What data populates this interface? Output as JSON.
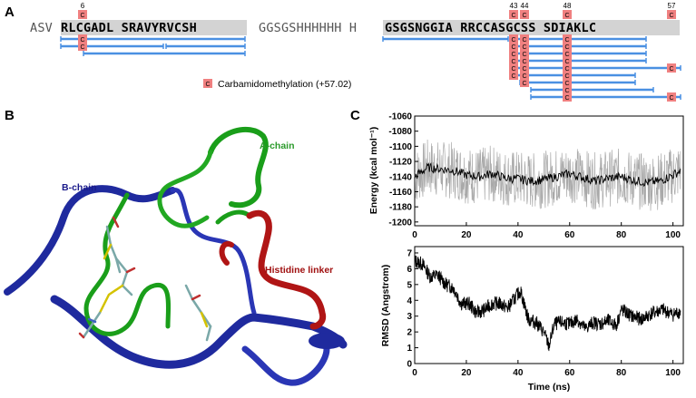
{
  "panel_a": {
    "label": "A",
    "seq_groups": [
      {
        "text": "ASV",
        "bold": false,
        "shaded": false
      },
      {
        "text": "RLCGADL SRAVYRVCSH",
        "bold": true,
        "shaded": true
      },
      {
        "text": "GGSGSHHHHHH H",
        "bold": false,
        "shaded": false
      },
      {
        "text": "GSGSNGGIA RRCCASGCSS SDIAKLC",
        "bold": true,
        "shaded": true
      }
    ],
    "cys_positions": [
      "6",
      "43",
      "44",
      "48",
      "57"
    ],
    "modification_symbol": "C",
    "legend_text": "Carbamidomethylation (+57.02)",
    "colors": {
      "peptide_bar": "#4a90e2",
      "mod_box": "#f08080",
      "shade": "#d3d3d3"
    }
  },
  "panel_b": {
    "label": "B",
    "labels": {
      "a_chain": "A-chain",
      "b_chain": "B-chain",
      "linker": "Histidine linker"
    },
    "colors": {
      "a_chain": "#1a9e1a",
      "b_chain": "#1f2a9e",
      "linker": "#b01515",
      "label_a": "#2a9a2a",
      "label_b": "#1a1a8a",
      "label_linker": "#a01010"
    }
  },
  "panel_c": {
    "label": "C",
    "chart_data": [
      {
        "type": "line",
        "title": "",
        "xlabel": "",
        "ylabel": "Energy (kcal mol⁻¹)",
        "xlim": [
          0,
          104
        ],
        "ylim": [
          -1205,
          -1060
        ],
        "xticks": [
          0,
          20,
          40,
          60,
          80,
          100
        ],
        "yticks": [
          -1060,
          -1080,
          -1100,
          -1120,
          -1140,
          -1160,
          -1180,
          -1200
        ],
        "series": [
          {
            "x": [
              0,
              5,
              10,
              15,
              20,
              25,
              30,
              35,
              40,
              45,
              50,
              55,
              60,
              65,
              70,
              75,
              80,
              85,
              90,
              95,
              100,
              103
            ],
            "values": [
              -1140,
              -1128,
              -1130,
              -1132,
              -1138,
              -1140,
              -1136,
              -1142,
              -1143,
              -1146,
              -1144,
              -1140,
              -1136,
              -1141,
              -1146,
              -1142,
              -1140,
              -1145,
              -1148,
              -1146,
              -1138,
              -1132
            ]
          }
        ],
        "raw_band_color": "#a9a9a9"
      },
      {
        "type": "line",
        "title": "",
        "xlabel": "Time (ns)",
        "ylabel": "RMSD (Angstrom)",
        "xlim": [
          0,
          104
        ],
        "ylim": [
          0,
          7.4
        ],
        "xticks": [
          0,
          20,
          40,
          60,
          80,
          100
        ],
        "yticks": [
          0,
          1,
          2,
          3,
          4,
          5,
          6,
          7
        ],
        "series": [
          {
            "x": [
              0,
              3,
              6,
              9,
              12,
              15,
              18,
              21,
              24,
              27,
              30,
              33,
              36,
              39,
              41,
              44,
              47,
              50,
              52,
              54,
              57,
              60,
              63,
              66,
              69,
              72,
              75,
              78,
              80,
              84,
              88,
              92,
              96,
              100,
              103
            ],
            "values": [
              6.5,
              6.3,
              5.5,
              5.6,
              5.0,
              4.8,
              3.8,
              3.8,
              3.2,
              3.4,
              3.8,
              3.8,
              3.5,
              4.2,
              4.6,
              2.8,
              2.6,
              2.0,
              1.1,
              2.5,
              2.6,
              2.5,
              2.8,
              2.2,
              2.6,
              2.5,
              2.7,
              2.4,
              3.4,
              3.0,
              2.8,
              3.2,
              3.4,
              3.1,
              3.3
            ]
          }
        ]
      }
    ]
  }
}
